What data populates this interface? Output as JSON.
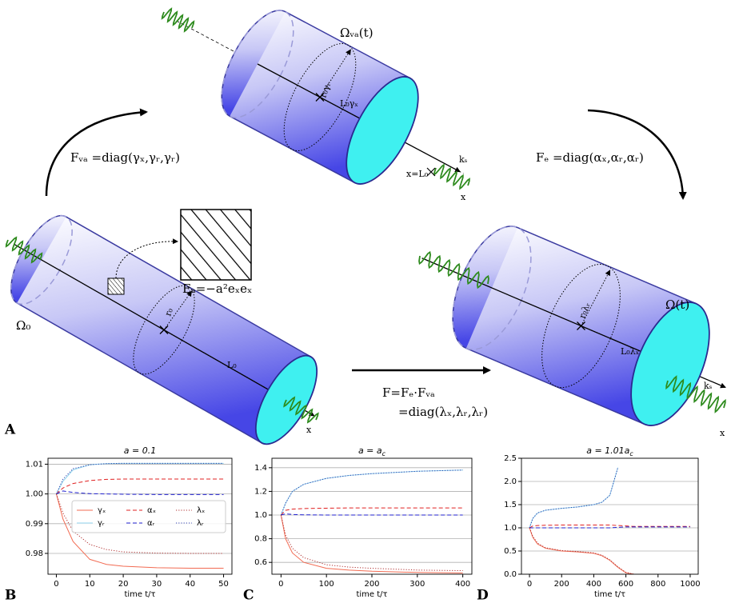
{
  "diagram": {
    "panel_a": "A",
    "omega_va": "Ωᵥₐ(t)",
    "f_va": "Fᵥₐ =diag(γₓ,γᵣ,γᵣ)",
    "f_e": "Fₑ =diag(αₓ,αᵣ,αᵣ)",
    "e_a": "Eₐ=−a²eₓeₓ",
    "omega_0": "Ω₀",
    "omega_t": "Ω(t)",
    "f_total": "F=Fₑ·Fᵥₐ",
    "f_diag": "=diag(λₓ,λᵣ,λᵣ)",
    "top_radius": "r₀γᵣ",
    "top_length": "L₀γₓ",
    "top_spring": "kₛ",
    "top_end": "x=L₀",
    "top_axis": "x",
    "left_radius": "r₀",
    "left_length": "L₀",
    "left_axis": "x",
    "right_radius": "r₀λᵣ",
    "right_length": "L₀λₓ",
    "right_spring": "kₛ",
    "right_axis": "x"
  },
  "chart_data": [
    {
      "type": "line",
      "panel": "B",
      "title": "a = 0.1",
      "xlabel": "time t/τ",
      "grid": true,
      "legend": "lower right",
      "legend_ncol": 3,
      "x": [
        0,
        2,
        5,
        10,
        15,
        20,
        30,
        40,
        50
      ],
      "xlim": [
        -2.5,
        52.5
      ],
      "xticks": [
        0,
        10,
        20,
        30,
        40,
        50
      ],
      "ylim": [
        0.973,
        1.012
      ],
      "yticks": [
        0.98,
        0.99,
        {
          "value": 1,
          "label": "1.00"
        },
        1.01
      ],
      "series": [
        {
          "name": "γₓ",
          "color": "#f26b52",
          "linestyle": "solid",
          "values": [
            1,
            0.9915,
            0.984,
            0.978,
            0.9763,
            0.9757,
            0.9752,
            0.975,
            0.975
          ]
        },
        {
          "name": "γᵣ",
          "color": "#8fd3ec",
          "linestyle": "solid",
          "values": [
            1,
            1.0043,
            1.0081,
            1.0098,
            1.0102,
            1.0103,
            1.0103,
            1.0103,
            1.0103
          ]
        },
        {
          "name": "αₓ",
          "color": "#e02020",
          "linestyle": "dashed",
          "values": [
            1,
            1.002,
            1.0035,
            1.0045,
            1.0049,
            1.005,
            1.005,
            1.005,
            1.005
          ]
        },
        {
          "name": "αᵣ",
          "color": "#2020d0",
          "linestyle": "dashed",
          "values": [
            1,
            1.001,
            1.0005,
            1.0001,
            1,
            0.9999,
            0.9998,
            0.9998,
            0.9998
          ]
        },
        {
          "name": "λₓ",
          "color": "#b03030",
          "linestyle": "dotted",
          "values": [
            1,
            0.9935,
            0.9875,
            0.983,
            0.9813,
            0.9805,
            0.9801,
            0.98,
            0.98
          ]
        },
        {
          "name": "λᵣ",
          "color": "#3040b0",
          "linestyle": "dotted",
          "values": [
            1,
            1.005,
            1.0085,
            1.0098,
            1.0102,
            1.0103,
            1.0103,
            1.0103,
            1.0103
          ]
        }
      ]
    },
    {
      "type": "line",
      "panel": "C",
      "title": "a = a",
      "title_subscript": "c",
      "xlabel": "time t/τ",
      "grid": true,
      "x": [
        0,
        10,
        25,
        50,
        100,
        150,
        200,
        300,
        400
      ],
      "xlim": [
        -20,
        420
      ],
      "xticks": [
        0,
        100,
        200,
        300,
        400
      ],
      "ylim": [
        0.5,
        1.48
      ],
      "yticks": [
        0.6,
        0.8,
        {
          "value": 1,
          "label": "1.0"
        },
        1.2,
        1.4
      ],
      "series": [
        {
          "name": "γₓ",
          "color": "#f26b52",
          "linestyle": "solid",
          "values": [
            1,
            0.8,
            0.68,
            0.6,
            0.55,
            0.535,
            0.525,
            0.515,
            0.51
          ]
        },
        {
          "name": "γᵣ",
          "color": "#8fd3ec",
          "linestyle": "solid",
          "values": [
            1,
            1.1,
            1.2,
            1.26,
            1.31,
            1.335,
            1.35,
            1.37,
            1.38
          ]
        },
        {
          "name": "αₓ",
          "color": "#e02020",
          "linestyle": "dashed",
          "values": [
            1,
            1.04,
            1.05,
            1.055,
            1.058,
            1.06,
            1.06,
            1.06,
            1.06
          ]
        },
        {
          "name": "αᵣ",
          "color": "#2020d0",
          "linestyle": "dashed",
          "values": [
            1,
            1.01,
            1.005,
            1.002,
            1,
            1,
            1,
            1,
            1
          ]
        },
        {
          "name": "λₓ",
          "color": "#b03030",
          "linestyle": "dotted",
          "values": [
            1,
            0.83,
            0.72,
            0.64,
            0.58,
            0.56,
            0.55,
            0.535,
            0.53
          ]
        },
        {
          "name": "λᵣ",
          "color": "#3040b0",
          "linestyle": "dotted",
          "values": [
            1,
            1.1,
            1.2,
            1.26,
            1.31,
            1.335,
            1.35,
            1.37,
            1.38
          ]
        }
      ]
    },
    {
      "type": "line",
      "panel": "D",
      "title": "a = 1.01a",
      "title_subscript": "c",
      "xlabel": "time t/τ",
      "grid": true,
      "x": [
        0,
        20,
        50,
        100,
        200,
        300,
        400,
        450,
        500,
        550,
        600,
        650,
        700,
        800,
        1000
      ],
      "xlim": [
        -50,
        1050
      ],
      "xticks": [
        0,
        200,
        400,
        600,
        800,
        1000
      ],
      "ylim": [
        0,
        2.5
      ],
      "yticks": [
        {
          "value": 0,
          "label": "0.0"
        },
        0.5,
        {
          "value": 1,
          "label": "1.0"
        },
        1.5,
        {
          "value": 2,
          "label": "2.0"
        },
        2.5
      ],
      "series": [
        {
          "name": "γₓ",
          "color": "#f26b52",
          "linestyle": "solid",
          "values": [
            1,
            0.8,
            0.65,
            0.56,
            0.5,
            0.48,
            0.45,
            0.4,
            0.3,
            0.15,
            0.03,
            0,
            null,
            null,
            null
          ]
        },
        {
          "name": "γᵣ",
          "color": "#8fd3ec",
          "linestyle": "solid",
          "values": [
            1,
            1.2,
            1.32,
            1.38,
            1.42,
            1.45,
            1.5,
            1.55,
            1.7,
            2.3,
            null,
            null,
            null,
            null,
            null
          ]
        },
        {
          "name": "αₓ",
          "color": "#e02020",
          "linestyle": "dashed",
          "values": [
            1,
            1.04,
            1.05,
            1.055,
            1.06,
            1.06,
            1.06,
            1.06,
            1.06,
            1.05,
            1.04,
            1.03,
            1.03,
            1.03,
            1.03
          ]
        },
        {
          "name": "αᵣ",
          "color": "#2020d0",
          "linestyle": "dashed",
          "values": [
            1,
            1,
            1,
            1,
            1,
            1,
            1,
            1,
            1,
            1.01,
            1.02,
            1.02,
            1.02,
            1.02,
            1.02
          ]
        },
        {
          "name": "λₓ",
          "color": "#b03030",
          "linestyle": "dotted",
          "values": [
            1,
            0.82,
            0.67,
            0.57,
            0.51,
            0.49,
            0.46,
            0.41,
            0.31,
            0.16,
            0.04,
            0,
            null,
            null,
            null
          ]
        },
        {
          "name": "λᵣ",
          "color": "#3040b0",
          "linestyle": "dotted",
          "values": [
            1,
            1.2,
            1.32,
            1.38,
            1.42,
            1.45,
            1.5,
            1.55,
            1.7,
            2.3,
            null,
            null,
            null,
            null,
            null
          ]
        }
      ]
    }
  ]
}
